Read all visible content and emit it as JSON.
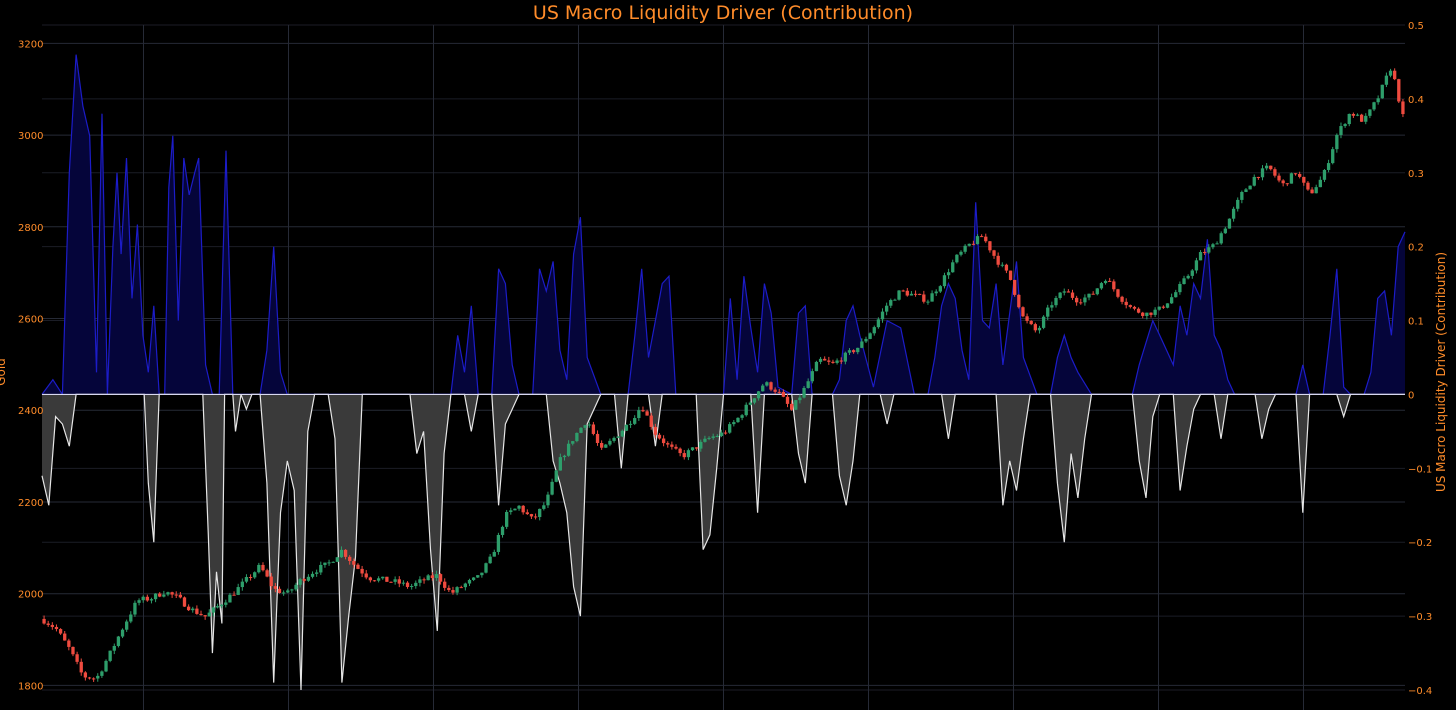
{
  "chart_data": {
    "type": "candlestick+area",
    "title": "US Macro Liquidity Driver (Contribution)",
    "left_axis": {
      "label": "Gold",
      "range": [
        1790,
        3240
      ],
      "ticks": [
        1800,
        2000,
        2200,
        2400,
        2600,
        2800,
        3000,
        3200
      ]
    },
    "right_axis": {
      "label": "US Macro Liquidity Driver (Contribution)",
      "range": [
        -0.4,
        0.5
      ],
      "ticks": [
        -0.4,
        -0.3,
        -0.2,
        -0.1,
        0,
        0.1,
        0.2,
        0.3,
        0.4,
        0.5
      ],
      "tick_labels": [
        "−0.4",
        "−0.3",
        "−0.2",
        "−0.1",
        "0",
        "0.1",
        "0.2",
        "0.3",
        "0.4",
        "0.5"
      ]
    },
    "grid": true,
    "x_gridline_count": 9,
    "gold_close_path": [
      [
        0,
        1945
      ],
      [
        0.01,
        1925
      ],
      [
        0.02,
        1880
      ],
      [
        0.03,
        1820
      ],
      [
        0.04,
        1815
      ],
      [
        0.05,
        1870
      ],
      [
        0.06,
        1930
      ],
      [
        0.07,
        1985
      ],
      [
        0.08,
        1990
      ],
      [
        0.09,
        2005
      ],
      [
        0.1,
        1990
      ],
      [
        0.11,
        1965
      ],
      [
        0.12,
        1950
      ],
      [
        0.13,
        1975
      ],
      [
        0.14,
        2000
      ],
      [
        0.15,
        2030
      ],
      [
        0.16,
        2060
      ],
      [
        0.17,
        2010
      ],
      [
        0.18,
        2000
      ],
      [
        0.19,
        2030
      ],
      [
        0.2,
        2050
      ],
      [
        0.21,
        2065
      ],
      [
        0.22,
        2095
      ],
      [
        0.23,
        2060
      ],
      [
        0.24,
        2035
      ],
      [
        0.25,
        2030
      ],
      [
        0.26,
        2025
      ],
      [
        0.27,
        2015
      ],
      [
        0.28,
        2030
      ],
      [
        0.29,
        2040
      ],
      [
        0.3,
        2000
      ],
      [
        0.31,
        2020
      ],
      [
        0.32,
        2035
      ],
      [
        0.33,
        2080
      ],
      [
        0.34,
        2170
      ],
      [
        0.35,
        2190
      ],
      [
        0.36,
        2160
      ],
      [
        0.37,
        2200
      ],
      [
        0.38,
        2290
      ],
      [
        0.39,
        2340
      ],
      [
        0.4,
        2380
      ],
      [
        0.41,
        2310
      ],
      [
        0.42,
        2340
      ],
      [
        0.43,
        2370
      ],
      [
        0.44,
        2410
      ],
      [
        0.45,
        2350
      ],
      [
        0.46,
        2320
      ],
      [
        0.47,
        2300
      ],
      [
        0.48,
        2320
      ],
      [
        0.49,
        2340
      ],
      [
        0.5,
        2350
      ],
      [
        0.51,
        2380
      ],
      [
        0.52,
        2420
      ],
      [
        0.53,
        2460
      ],
      [
        0.54,
        2440
      ],
      [
        0.55,
        2400
      ],
      [
        0.56,
        2450
      ],
      [
        0.57,
        2510
      ],
      [
        0.58,
        2500
      ],
      [
        0.59,
        2520
      ],
      [
        0.6,
        2540
      ],
      [
        0.61,
        2580
      ],
      [
        0.62,
        2630
      ],
      [
        0.63,
        2660
      ],
      [
        0.64,
        2650
      ],
      [
        0.65,
        2640
      ],
      [
        0.66,
        2680
      ],
      [
        0.67,
        2730
      ],
      [
        0.68,
        2760
      ],
      [
        0.69,
        2780
      ],
      [
        0.7,
        2730
      ],
      [
        0.71,
        2690
      ],
      [
        0.72,
        2600
      ],
      [
        0.73,
        2570
      ],
      [
        0.74,
        2630
      ],
      [
        0.75,
        2660
      ],
      [
        0.76,
        2640
      ],
      [
        0.77,
        2650
      ],
      [
        0.78,
        2690
      ],
      [
        0.79,
        2650
      ],
      [
        0.8,
        2620
      ],
      [
        0.81,
        2610
      ],
      [
        0.82,
        2620
      ],
      [
        0.83,
        2650
      ],
      [
        0.84,
        2690
      ],
      [
        0.85,
        2740
      ],
      [
        0.86,
        2760
      ],
      [
        0.87,
        2810
      ],
      [
        0.88,
        2870
      ],
      [
        0.89,
        2910
      ],
      [
        0.9,
        2930
      ],
      [
        0.91,
        2890
      ],
      [
        0.92,
        2920
      ],
      [
        0.93,
        2870
      ],
      [
        0.94,
        2910
      ],
      [
        0.95,
        3000
      ],
      [
        0.96,
        3050
      ],
      [
        0.97,
        3030
      ],
      [
        0.98,
        3080
      ],
      [
        0.99,
        3150
      ],
      [
        1,
        3020
      ]
    ],
    "liquidity_positive_path": [
      [
        0,
        0
      ],
      [
        0.008,
        0.02
      ],
      [
        0.015,
        0
      ],
      [
        0.02,
        0.3
      ],
      [
        0.025,
        0.46
      ],
      [
        0.03,
        0.39
      ],
      [
        0.035,
        0.35
      ],
      [
        0.04,
        0.03
      ],
      [
        0.044,
        0.38
      ],
      [
        0.048,
        0
      ],
      [
        0.052,
        0.2
      ],
      [
        0.055,
        0.3
      ],
      [
        0.058,
        0.19
      ],
      [
        0.062,
        0.32
      ],
      [
        0.066,
        0.13
      ],
      [
        0.07,
        0.23
      ],
      [
        0.074,
        0.08
      ],
      [
        0.078,
        0.03
      ],
      [
        0.082,
        0.12
      ],
      [
        0.086,
        0
      ],
      [
        0.09,
        0
      ],
      [
        0.093,
        0.28
      ],
      [
        0.096,
        0.35
      ],
      [
        0.1,
        0.1
      ],
      [
        0.104,
        0.32
      ],
      [
        0.108,
        0.27
      ],
      [
        0.112,
        0.3
      ],
      [
        0.115,
        0.32
      ],
      [
        0.12,
        0.04
      ],
      [
        0.125,
        0
      ],
      [
        0.13,
        0
      ],
      [
        0.135,
        0.33
      ],
      [
        0.14,
        0
      ],
      [
        0.16,
        0
      ],
      [
        0.165,
        0.06
      ],
      [
        0.17,
        0.2
      ],
      [
        0.175,
        0.03
      ],
      [
        0.18,
        0
      ],
      [
        0.3,
        0
      ],
      [
        0.305,
        0.08
      ],
      [
        0.31,
        0.03
      ],
      [
        0.315,
        0.12
      ],
      [
        0.32,
        0
      ],
      [
        0.33,
        0
      ],
      [
        0.335,
        0.17
      ],
      [
        0.34,
        0.15
      ],
      [
        0.345,
        0.04
      ],
      [
        0.35,
        0
      ],
      [
        0.36,
        0
      ],
      [
        0.365,
        0.17
      ],
      [
        0.37,
        0.14
      ],
      [
        0.375,
        0.18
      ],
      [
        0.38,
        0.06
      ],
      [
        0.385,
        0.02
      ],
      [
        0.39,
        0.19
      ],
      [
        0.395,
        0.24
      ],
      [
        0.4,
        0.05
      ],
      [
        0.41,
        0
      ],
      [
        0.43,
        0
      ],
      [
        0.435,
        0.08
      ],
      [
        0.44,
        0.17
      ],
      [
        0.445,
        0.05
      ],
      [
        0.45,
        0.1
      ],
      [
        0.455,
        0.15
      ],
      [
        0.46,
        0.16
      ],
      [
        0.465,
        0
      ],
      [
        0.5,
        0
      ],
      [
        0.505,
        0.13
      ],
      [
        0.51,
        0.02
      ],
      [
        0.515,
        0.16
      ],
      [
        0.52,
        0.09
      ],
      [
        0.525,
        0.03
      ],
      [
        0.53,
        0.15
      ],
      [
        0.535,
        0.11
      ],
      [
        0.54,
        0.01
      ],
      [
        0.55,
        0
      ],
      [
        0.555,
        0.11
      ],
      [
        0.56,
        0.12
      ],
      [
        0.565,
        0
      ],
      [
        0.58,
        0
      ],
      [
        0.585,
        0.02
      ],
      [
        0.59,
        0.1
      ],
      [
        0.595,
        0.12
      ],
      [
        0.6,
        0.08
      ],
      [
        0.61,
        0.01
      ],
      [
        0.62,
        0.1
      ],
      [
        0.63,
        0.09
      ],
      [
        0.64,
        0
      ],
      [
        0.65,
        0
      ],
      [
        0.655,
        0.05
      ],
      [
        0.66,
        0.12
      ],
      [
        0.665,
        0.15
      ],
      [
        0.67,
        0.13
      ],
      [
        0.675,
        0.06
      ],
      [
        0.68,
        0.02
      ],
      [
        0.685,
        0.26
      ],
      [
        0.69,
        0.1
      ],
      [
        0.695,
        0.09
      ],
      [
        0.7,
        0.15
      ],
      [
        0.705,
        0.04
      ],
      [
        0.71,
        0.11
      ],
      [
        0.715,
        0.18
      ],
      [
        0.72,
        0.05
      ],
      [
        0.73,
        0
      ],
      [
        0.74,
        0
      ],
      [
        0.745,
        0.05
      ],
      [
        0.75,
        0.08
      ],
      [
        0.755,
        0.05
      ],
      [
        0.76,
        0.03
      ],
      [
        0.77,
        0
      ],
      [
        0.8,
        0
      ],
      [
        0.805,
        0.04
      ],
      [
        0.81,
        0.07
      ],
      [
        0.815,
        0.1
      ],
      [
        0.82,
        0.08
      ],
      [
        0.83,
        0.04
      ],
      [
        0.835,
        0.12
      ],
      [
        0.84,
        0.08
      ],
      [
        0.845,
        0.15
      ],
      [
        0.85,
        0.13
      ],
      [
        0.855,
        0.21
      ],
      [
        0.86,
        0.08
      ],
      [
        0.865,
        0.06
      ],
      [
        0.87,
        0.02
      ],
      [
        0.875,
        0
      ],
      [
        0.92,
        0
      ],
      [
        0.925,
        0.04
      ],
      [
        0.93,
        0
      ],
      [
        0.94,
        0
      ],
      [
        0.945,
        0.08
      ],
      [
        0.95,
        0.17
      ],
      [
        0.955,
        0.01
      ],
      [
        0.96,
        0
      ],
      [
        0.97,
        0
      ],
      [
        0.975,
        0.03
      ],
      [
        0.98,
        0.13
      ],
      [
        0.985,
        0.14
      ],
      [
        0.99,
        0.08
      ],
      [
        0.995,
        0.2
      ],
      [
        1,
        0.22
      ]
    ],
    "liquidity_negative_path": [
      [
        0,
        -0.11
      ],
      [
        0.005,
        -0.15
      ],
      [
        0.01,
        -0.03
      ],
      [
        0.015,
        -0.04
      ],
      [
        0.02,
        -0.07
      ],
      [
        0.025,
        0
      ],
      [
        0.075,
        0
      ],
      [
        0.078,
        -0.12
      ],
      [
        0.082,
        -0.2
      ],
      [
        0.086,
        0
      ],
      [
        0.118,
        0
      ],
      [
        0.122,
        -0.19
      ],
      [
        0.125,
        -0.35
      ],
      [
        0.128,
        -0.24
      ],
      [
        0.132,
        -0.31
      ],
      [
        0.134,
        0
      ],
      [
        0.14,
        0
      ],
      [
        0.142,
        -0.05
      ],
      [
        0.146,
        0
      ],
      [
        0.15,
        -0.02
      ],
      [
        0.154,
        0
      ],
      [
        0.16,
        0
      ],
      [
        0.165,
        -0.12
      ],
      [
        0.17,
        -0.39
      ],
      [
        0.175,
        -0.16
      ],
      [
        0.18,
        -0.09
      ],
      [
        0.185,
        -0.13
      ],
      [
        0.19,
        -0.4
      ],
      [
        0.195,
        -0.05
      ],
      [
        0.2,
        0
      ],
      [
        0.21,
        0
      ],
      [
        0.215,
        -0.06
      ],
      [
        0.22,
        -0.39
      ],
      [
        0.225,
        -0.3
      ],
      [
        0.23,
        -0.22
      ],
      [
        0.235,
        0
      ],
      [
        0.27,
        0
      ],
      [
        0.275,
        -0.08
      ],
      [
        0.28,
        -0.05
      ],
      [
        0.285,
        -0.21
      ],
      [
        0.29,
        -0.32
      ],
      [
        0.295,
        -0.08
      ],
      [
        0.3,
        0
      ],
      [
        0.31,
        0
      ],
      [
        0.315,
        -0.05
      ],
      [
        0.32,
        0
      ],
      [
        0.33,
        0
      ],
      [
        0.335,
        -0.15
      ],
      [
        0.34,
        -0.04
      ],
      [
        0.345,
        -0.02
      ],
      [
        0.35,
        0
      ],
      [
        0.37,
        0
      ],
      [
        0.375,
        -0.09
      ],
      [
        0.38,
        -0.12
      ],
      [
        0.385,
        -0.16
      ],
      [
        0.39,
        -0.26
      ],
      [
        0.395,
        -0.3
      ],
      [
        0.4,
        -0.04
      ],
      [
        0.41,
        0
      ],
      [
        0.42,
        0
      ],
      [
        0.425,
        -0.1
      ],
      [
        0.43,
        0
      ],
      [
        0.445,
        0
      ],
      [
        0.45,
        -0.07
      ],
      [
        0.455,
        0
      ],
      [
        0.48,
        0
      ],
      [
        0.485,
        -0.21
      ],
      [
        0.49,
        -0.19
      ],
      [
        0.495,
        -0.1
      ],
      [
        0.5,
        0
      ],
      [
        0.52,
        0
      ],
      [
        0.525,
        -0.16
      ],
      [
        0.53,
        0
      ],
      [
        0.55,
        0
      ],
      [
        0.555,
        -0.08
      ],
      [
        0.56,
        -0.12
      ],
      [
        0.565,
        0
      ],
      [
        0.58,
        0
      ],
      [
        0.585,
        -0.11
      ],
      [
        0.59,
        -0.15
      ],
      [
        0.595,
        -0.09
      ],
      [
        0.6,
        0
      ],
      [
        0.615,
        0
      ],
      [
        0.62,
        -0.04
      ],
      [
        0.625,
        0
      ],
      [
        0.66,
        0
      ],
      [
        0.665,
        -0.06
      ],
      [
        0.67,
        0
      ],
      [
        0.7,
        0
      ],
      [
        0.705,
        -0.15
      ],
      [
        0.71,
        -0.09
      ],
      [
        0.715,
        -0.13
      ],
      [
        0.72,
        -0.06
      ],
      [
        0.725,
        0
      ],
      [
        0.74,
        0
      ],
      [
        0.745,
        -0.12
      ],
      [
        0.75,
        -0.2
      ],
      [
        0.755,
        -0.08
      ],
      [
        0.76,
        -0.14
      ],
      [
        0.765,
        -0.06
      ],
      [
        0.77,
        0
      ],
      [
        0.8,
        0
      ],
      [
        0.805,
        -0.09
      ],
      [
        0.81,
        -0.14
      ],
      [
        0.815,
        -0.03
      ],
      [
        0.82,
        0
      ],
      [
        0.83,
        0
      ],
      [
        0.835,
        -0.13
      ],
      [
        0.84,
        -0.07
      ],
      [
        0.845,
        -0.02
      ],
      [
        0.85,
        0
      ],
      [
        0.86,
        0
      ],
      [
        0.865,
        -0.06
      ],
      [
        0.87,
        0
      ],
      [
        0.89,
        0
      ],
      [
        0.895,
        -0.06
      ],
      [
        0.9,
        -0.02
      ],
      [
        0.905,
        0
      ],
      [
        0.92,
        0
      ],
      [
        0.925,
        -0.16
      ],
      [
        0.93,
        0
      ],
      [
        0.95,
        0
      ],
      [
        0.955,
        -0.03
      ],
      [
        0.96,
        0
      ],
      [
        1,
        0
      ]
    ],
    "colors": {
      "background": "#000000",
      "grid": "#262a36",
      "text": "#ff8c2a",
      "candle_up": "#2e9e6b",
      "candle_down": "#ef4b3f",
      "liquidity_positive_line": "#1c1cc8",
      "liquidity_positive_fill": "#05053a",
      "liquidity_negative_line": "#e6e6e6",
      "liquidity_negative_fill": "#3a3a3a",
      "zero_line": "#d8d8f0"
    }
  }
}
